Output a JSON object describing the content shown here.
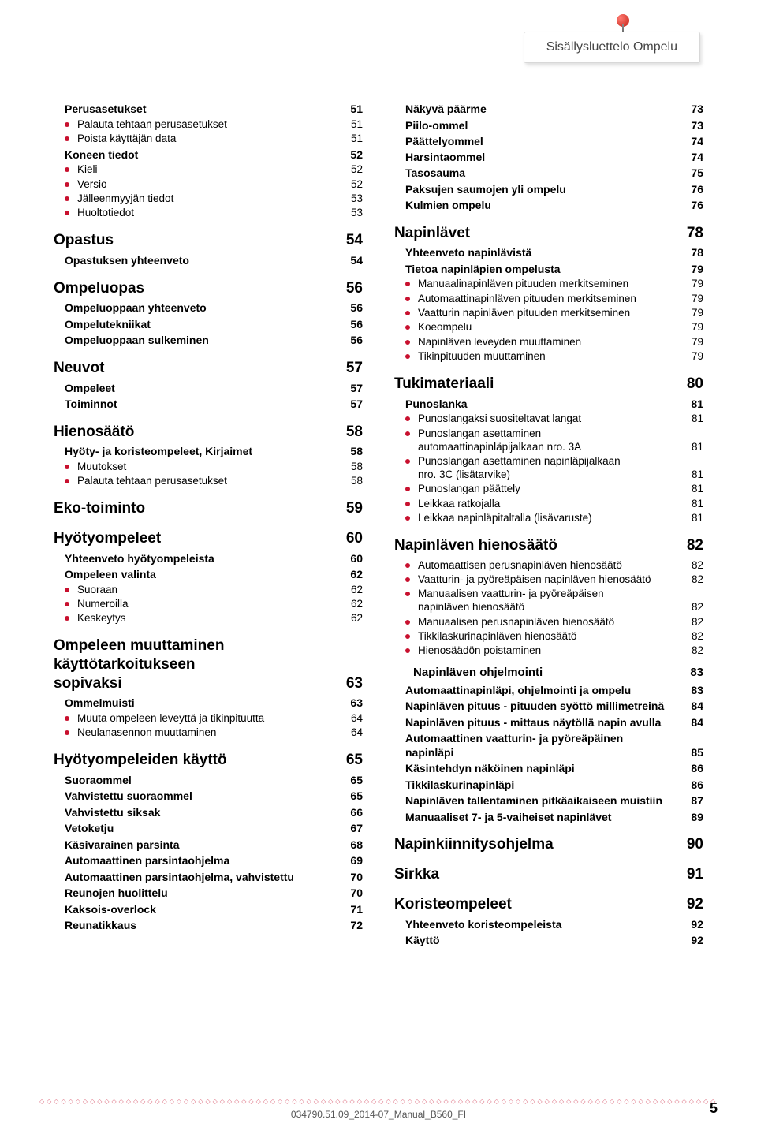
{
  "header": {
    "title": "Sisällysluettelo Ompelu"
  },
  "colors": {
    "accent": "#c8102e",
    "text": "#000000",
    "bg": "#ffffff"
  },
  "footer": {
    "doc_id": "034790.51.09_2014-07_Manual_B560_FI",
    "page": "5"
  },
  "left": [
    {
      "type": "h2",
      "label": "Perusasetukset",
      "page": "51",
      "first": true
    },
    {
      "type": "b",
      "label": "Palauta tehtaan perusasetukset",
      "page": "51"
    },
    {
      "type": "b",
      "label": "Poista käyttäjän data",
      "page": "51"
    },
    {
      "type": "h2",
      "label": "Koneen tiedot",
      "page": "52"
    },
    {
      "type": "b",
      "label": "Kieli",
      "page": "52"
    },
    {
      "type": "b",
      "label": "Versio",
      "page": "52"
    },
    {
      "type": "b",
      "label": "Jälleenmyyjän tiedot",
      "page": "53"
    },
    {
      "type": "b",
      "label": "Huoltotiedot",
      "page": "53"
    },
    {
      "type": "h1",
      "label": "Opastus",
      "page": "54"
    },
    {
      "type": "h2",
      "label": "Opastuksen yhteenveto",
      "page": "54"
    },
    {
      "type": "h1",
      "label": "Ompeluopas",
      "page": "56"
    },
    {
      "type": "h2",
      "label": "Ompeluoppaan yhteenveto",
      "page": "56"
    },
    {
      "type": "h2",
      "label": "Ompelutekniikat",
      "page": "56"
    },
    {
      "type": "h2",
      "label": "Ompeluoppaan sulkeminen",
      "page": "56"
    },
    {
      "type": "h1",
      "label": "Neuvot",
      "page": "57"
    },
    {
      "type": "h2",
      "label": "Ompeleet",
      "page": "57"
    },
    {
      "type": "h2",
      "label": "Toiminnot",
      "page": "57"
    },
    {
      "type": "h1",
      "label": "Hienosäätö",
      "page": "58"
    },
    {
      "type": "h2",
      "label": "Hyöty- ja koristeompeleet, Kirjaimet",
      "page": "58"
    },
    {
      "type": "b",
      "label": "Muutokset",
      "page": "58"
    },
    {
      "type": "b",
      "label": "Palauta tehtaan perusasetukset",
      "page": "58"
    },
    {
      "type": "h1",
      "label": "Eko-toiminto",
      "page": "59"
    },
    {
      "type": "h1",
      "label": "Hyötyompeleet",
      "page": "60"
    },
    {
      "type": "h2",
      "label": "Yhteenveto hyötyompeleista",
      "page": "60"
    },
    {
      "type": "h2",
      "label": "Ompeleen valinta",
      "page": "62"
    },
    {
      "type": "b",
      "label": "Suoraan",
      "page": "62"
    },
    {
      "type": "b",
      "label": "Numeroilla",
      "page": "62"
    },
    {
      "type": "b",
      "label": "Keskeytys",
      "page": "62"
    },
    {
      "type": "h1multi",
      "label1": "Ompeleen muuttaminen käyttötarkoitukseen",
      "label2": "sopivaksi",
      "page": "63"
    },
    {
      "type": "h2",
      "label": "Ommelmuisti",
      "page": "63"
    },
    {
      "type": "b",
      "label": "Muuta ompeleen leveyttä ja tikinpituutta",
      "page": "64"
    },
    {
      "type": "b",
      "label": "Neulanasennon muuttaminen",
      "page": "64"
    },
    {
      "type": "h1",
      "label": "Hyötyompeleiden käyttö",
      "page": "65"
    },
    {
      "type": "h2",
      "label": "Suoraommel",
      "page": "65"
    },
    {
      "type": "h2",
      "label": "Vahvistettu suoraommel",
      "page": "65"
    },
    {
      "type": "h2",
      "label": "Vahvistettu siksak",
      "page": "66"
    },
    {
      "type": "h2",
      "label": "Vetoketju",
      "page": "67"
    },
    {
      "type": "h2",
      "label": "Käsivarainen parsinta",
      "page": "68"
    },
    {
      "type": "h2",
      "label": "Automaattinen parsintaohjelma",
      "page": "69"
    },
    {
      "type": "h2",
      "label": "Automaattinen parsintaohjelma, vahvistettu",
      "page": "70"
    },
    {
      "type": "h2",
      "label": "Reunojen huolittelu",
      "page": "70"
    },
    {
      "type": "h2",
      "label": "Kaksois-overlock",
      "page": "71"
    },
    {
      "type": "h2",
      "label": "Reunatikkaus",
      "page": "72"
    },
    {
      "type": "h2",
      "label": "Näkyvä päärme",
      "page": "73"
    },
    {
      "type": "h2",
      "label": "Piilo-ommel",
      "page": "73"
    },
    {
      "type": "h2",
      "label": "Päättelyommel",
      "page": "74"
    }
  ],
  "right": [
    {
      "type": "h2",
      "label": "Harsintaommel",
      "page": "74",
      "first": true
    },
    {
      "type": "h2",
      "label": "Tasosauma",
      "page": "75"
    },
    {
      "type": "h2",
      "label": "Paksujen saumojen yli ompelu",
      "page": "76"
    },
    {
      "type": "h2",
      "label": "Kulmien ompelu",
      "page": "76"
    },
    {
      "type": "h1",
      "label": "Napinlävet",
      "page": "78"
    },
    {
      "type": "h2",
      "label": "Yhteenveto napinlävistä",
      "page": "78"
    },
    {
      "type": "h2",
      "label": "Tietoa napinläpien ompelusta",
      "page": "79"
    },
    {
      "type": "b",
      "label": "Manuaalinapinläven pituuden merkitseminen",
      "page": "79"
    },
    {
      "type": "b",
      "label": "Automaattinapinläven pituuden merkitseminen",
      "page": "79"
    },
    {
      "type": "b",
      "label": "Vaatturin napinläven pituuden merkitseminen",
      "page": "79"
    },
    {
      "type": "b",
      "label": "Koeompelu",
      "page": "79"
    },
    {
      "type": "b",
      "label": "Napinläven leveyden muuttaminen",
      "page": "79"
    },
    {
      "type": "b",
      "label": "Tikinpituuden muuttaminen",
      "page": "79"
    },
    {
      "type": "h1",
      "label": "Tukimateriaali",
      "page": "80"
    },
    {
      "type": "h2",
      "label": "Punoslanka",
      "page": "81"
    },
    {
      "type": "b",
      "label": "Punoslangaksi suositeltavat langat",
      "page": "81"
    },
    {
      "type": "b2",
      "label1": "Punoslangan asettaminen",
      "label2": "automaattinapinläpijalkaan nro. 3A",
      "page": "81"
    },
    {
      "type": "b2",
      "label1": "Punoslangan asettaminen napinläpijalkaan",
      "label2": "nro. 3C (lisätarvike)",
      "page": "81"
    },
    {
      "type": "b",
      "label": "Punoslangan päättely",
      "page": "81"
    },
    {
      "type": "b",
      "label": "Leikkaa ratkojalla",
      "page": "81"
    },
    {
      "type": "b",
      "label": "Leikkaa napinläpitaltalla (lisävaruste)",
      "page": "81"
    },
    {
      "type": "h1",
      "label": "Napinläven hienosäätö",
      "page": "82"
    },
    {
      "type": "b",
      "label": "Automaattisen perusnapinläven hienosäätö",
      "page": "82"
    },
    {
      "type": "b",
      "label": "Vaatturin- ja pyöreäpäisen napinläven hienosäätö",
      "page": "82"
    },
    {
      "type": "b2",
      "label1": "Manuaalisen vaatturin- ja pyöreäpäisen",
      "label2": "napinläven hienosäätö",
      "page": "82"
    },
    {
      "type": "b",
      "label": "Manuaalisen perusnapinläven hienosäätö",
      "page": "82"
    },
    {
      "type": "b",
      "label": "Tikkilaskurinapinläven hienosäätö",
      "page": "82"
    },
    {
      "type": "b",
      "label": "Hienosäädön poistaminen",
      "page": "82"
    },
    {
      "type": "h2ind",
      "label": "Napinläven ohjelmointi",
      "page": "83"
    },
    {
      "type": "h2",
      "label": "Automaattinapinläpi, ohjelmointi ja ompelu",
      "page": "83"
    },
    {
      "type": "h2",
      "label": "Napinläven pituus - pituuden syöttö millimetreinä",
      "page": "84"
    },
    {
      "type": "h2",
      "label": "Napinläven pituus - mittaus näytöllä napin avulla",
      "page": "84"
    },
    {
      "type": "h2multi",
      "label1": "Automaattinen vaatturin- ja pyöreäpäinen",
      "label2": "napinläpi",
      "page": "85"
    },
    {
      "type": "h2",
      "label": "Käsintehdyn näköinen napinläpi",
      "page": "86"
    },
    {
      "type": "h2",
      "label": "Tikkilaskurinapinläpi",
      "page": "86"
    },
    {
      "type": "h2",
      "label": "Napinläven tallentaminen pitkäaikaiseen muistiin",
      "page": "87"
    },
    {
      "type": "h2",
      "label": "Manuaaliset 7- ja 5-vaiheiset napinlävet",
      "page": "89"
    },
    {
      "type": "h1",
      "label": "Napinkiinnitysohjelma",
      "page": "90"
    },
    {
      "type": "h1",
      "label": "Sirkka",
      "page": "91"
    },
    {
      "type": "h1",
      "label": "Koristeompeleet",
      "page": "92"
    },
    {
      "type": "h2",
      "label": "Yhteenveto koristeompeleista",
      "page": "92"
    },
    {
      "type": "h2",
      "label": "Käyttö",
      "page": "92"
    }
  ]
}
